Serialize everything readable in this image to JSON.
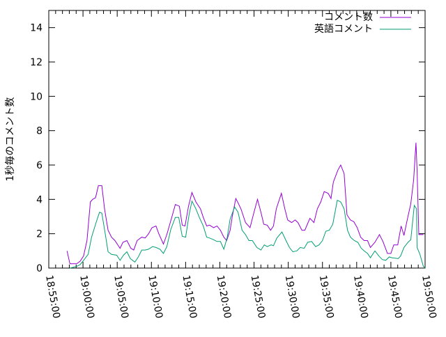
{
  "chart_data": {
    "type": "line",
    "title": "",
    "xlabel": "",
    "ylabel": "1秒毎のコメント数",
    "xlim": [
      "18:55:00",
      "19:50:00"
    ],
    "ylim": [
      0,
      15
    ],
    "x_ticks": [
      "18:55:00",
      "19:00:00",
      "19:05:00",
      "19:10:00",
      "19:15:00",
      "19:20:00",
      "19:25:00",
      "19:30:00",
      "19:35:00",
      "19:40:00",
      "19:45:00",
      "19:50:00"
    ],
    "y_ticks": [
      0,
      2,
      4,
      6,
      8,
      10,
      12,
      14
    ],
    "grid": false,
    "legend_position": "top-right",
    "series": [
      {
        "name": "コメント数",
        "color": "#9400d3",
        "points": [
          [
            "18:57:40",
            1.0
          ],
          [
            "18:58:05",
            0.25
          ],
          [
            "18:59:05",
            0.25
          ],
          [
            "18:59:35",
            0.4
          ],
          [
            "19:00:05",
            0.7
          ],
          [
            "19:00:35",
            1.6
          ],
          [
            "19:01:05",
            3.85
          ],
          [
            "19:01:25",
            4.0
          ],
          [
            "19:01:50",
            4.1
          ],
          [
            "19:02:15",
            4.8
          ],
          [
            "19:02:45",
            4.8
          ],
          [
            "19:03:10",
            3.4
          ],
          [
            "19:03:40",
            2.2
          ],
          [
            "19:04:10",
            1.8
          ],
          [
            "19:04:40",
            1.6
          ],
          [
            "19:05:25",
            1.15
          ],
          [
            "19:05:50",
            1.5
          ],
          [
            "19:06:25",
            1.6
          ],
          [
            "19:07:00",
            1.15
          ],
          [
            "19:07:25",
            1.05
          ],
          [
            "19:07:55",
            1.6
          ],
          [
            "19:08:35",
            1.8
          ],
          [
            "19:09:05",
            1.75
          ],
          [
            "19:09:35",
            2.0
          ],
          [
            "19:10:05",
            2.35
          ],
          [
            "19:10:40",
            2.45
          ],
          [
            "19:11:05",
            2.0
          ],
          [
            "19:11:45",
            1.4
          ],
          [
            "19:12:15",
            1.95
          ],
          [
            "19:13:05",
            3.1
          ],
          [
            "19:13:30",
            3.7
          ],
          [
            "19:14:05",
            3.6
          ],
          [
            "19:14:30",
            2.5
          ],
          [
            "19:14:55",
            2.45
          ],
          [
            "19:15:25",
            3.6
          ],
          [
            "19:15:55",
            4.4
          ],
          [
            "19:16:30",
            3.85
          ],
          [
            "19:17:10",
            3.45
          ],
          [
            "19:17:35",
            2.95
          ],
          [
            "19:18:05",
            2.45
          ],
          [
            "19:18:30",
            2.5
          ],
          [
            "19:19:05",
            2.35
          ],
          [
            "19:19:35",
            2.45
          ],
          [
            "19:20:05",
            2.2
          ],
          [
            "19:20:35",
            1.8
          ],
          [
            "19:21:00",
            1.6
          ],
          [
            "19:21:30",
            2.2
          ],
          [
            "19:21:50",
            3.05
          ],
          [
            "19:22:20",
            4.05
          ],
          [
            "19:22:40",
            3.8
          ],
          [
            "19:23:05",
            3.45
          ],
          [
            "19:23:45",
            2.65
          ],
          [
            "19:24:25",
            2.35
          ],
          [
            "19:25:00",
            3.25
          ],
          [
            "19:25:30",
            4.0
          ],
          [
            "19:26:00",
            3.25
          ],
          [
            "19:26:25",
            2.55
          ],
          [
            "19:26:55",
            2.5
          ],
          [
            "19:27:25",
            2.2
          ],
          [
            "19:27:50",
            2.45
          ],
          [
            "19:28:15",
            3.45
          ],
          [
            "19:29:00",
            4.35
          ],
          [
            "19:29:30",
            3.45
          ],
          [
            "19:29:55",
            2.8
          ],
          [
            "19:30:30",
            2.65
          ],
          [
            "19:31:00",
            2.8
          ],
          [
            "19:31:25",
            2.65
          ],
          [
            "19:32:00",
            2.2
          ],
          [
            "19:32:25",
            2.2
          ],
          [
            "19:33:10",
            2.9
          ],
          [
            "19:33:45",
            2.65
          ],
          [
            "19:34:15",
            3.45
          ],
          [
            "19:34:45",
            3.85
          ],
          [
            "19:35:15",
            4.45
          ],
          [
            "19:35:50",
            4.35
          ],
          [
            "19:36:15",
            4.05
          ],
          [
            "19:36:35",
            5.0
          ],
          [
            "19:37:15",
            5.7
          ],
          [
            "19:37:40",
            6.0
          ],
          [
            "19:38:10",
            5.5
          ],
          [
            "19:38:35",
            3.1
          ],
          [
            "19:39:05",
            2.8
          ],
          [
            "19:39:35",
            2.7
          ],
          [
            "19:40:05",
            2.35
          ],
          [
            "19:40:35",
            1.8
          ],
          [
            "19:41:05",
            1.6
          ],
          [
            "19:41:35",
            1.6
          ],
          [
            "19:42:00",
            1.2
          ],
          [
            "19:42:40",
            1.5
          ],
          [
            "19:43:20",
            1.95
          ],
          [
            "19:43:50",
            1.55
          ],
          [
            "19:44:30",
            0.85
          ],
          [
            "19:45:00",
            0.85
          ],
          [
            "19:45:25",
            1.35
          ],
          [
            "19:46:00",
            1.35
          ],
          [
            "19:46:30",
            2.45
          ],
          [
            "19:46:55",
            1.9
          ],
          [
            "19:47:25",
            2.85
          ],
          [
            "19:47:55",
            3.75
          ],
          [
            "19:48:20",
            5.15
          ],
          [
            "19:48:40",
            7.3
          ],
          [
            "19:48:50",
            5.7
          ],
          [
            "19:49:05",
            1.95
          ],
          [
            "19:49:45",
            1.95
          ]
        ]
      },
      {
        "name": "英語コメント",
        "color": "#009e73",
        "points": [
          [
            "18:58:05",
            0
          ],
          [
            "18:58:35",
            0.05
          ],
          [
            "18:59:05",
            0.1
          ],
          [
            "18:59:35",
            0.2
          ],
          [
            "19:00:05",
            0.45
          ],
          [
            "19:00:45",
            0.8
          ],
          [
            "19:01:15",
            1.8
          ],
          [
            "19:01:55",
            2.65
          ],
          [
            "19:02:25",
            3.25
          ],
          [
            "19:02:45",
            3.2
          ],
          [
            "19:03:10",
            2.2
          ],
          [
            "19:03:40",
            0.95
          ],
          [
            "19:04:10",
            0.8
          ],
          [
            "19:04:55",
            0.75
          ],
          [
            "19:05:25",
            0.45
          ],
          [
            "19:05:55",
            0.75
          ],
          [
            "19:06:25",
            0.95
          ],
          [
            "19:06:55",
            0.55
          ],
          [
            "19:07:35",
            0.35
          ],
          [
            "19:08:05",
            0.65
          ],
          [
            "19:08:35",
            1.05
          ],
          [
            "19:09:05",
            1.05
          ],
          [
            "19:09:35",
            1.1
          ],
          [
            "19:10:10",
            1.25
          ],
          [
            "19:10:40",
            1.2
          ],
          [
            "19:11:15",
            1.1
          ],
          [
            "19:11:45",
            0.85
          ],
          [
            "19:12:15",
            1.25
          ],
          [
            "19:12:50",
            2.25
          ],
          [
            "19:13:30",
            2.95
          ],
          [
            "19:14:00",
            2.95
          ],
          [
            "19:14:30",
            1.85
          ],
          [
            "19:15:00",
            1.8
          ],
          [
            "19:15:30",
            3.1
          ],
          [
            "19:15:55",
            3.9
          ],
          [
            "19:16:30",
            3.45
          ],
          [
            "19:17:00",
            2.95
          ],
          [
            "19:17:35",
            2.45
          ],
          [
            "19:18:05",
            1.8
          ],
          [
            "19:18:30",
            1.75
          ],
          [
            "19:19:05",
            1.65
          ],
          [
            "19:19:35",
            1.55
          ],
          [
            "19:20:05",
            1.55
          ],
          [
            "19:20:35",
            1.1
          ],
          [
            "19:21:05",
            1.8
          ],
          [
            "19:21:30",
            2.85
          ],
          [
            "19:22:10",
            3.55
          ],
          [
            "19:22:40",
            3.25
          ],
          [
            "19:23:15",
            2.2
          ],
          [
            "19:23:45",
            1.95
          ],
          [
            "19:24:15",
            1.6
          ],
          [
            "19:24:45",
            1.6
          ],
          [
            "19:25:25",
            1.2
          ],
          [
            "19:26:00",
            1.05
          ],
          [
            "19:26:30",
            1.35
          ],
          [
            "19:26:55",
            1.25
          ],
          [
            "19:27:30",
            1.35
          ],
          [
            "19:27:50",
            1.3
          ],
          [
            "19:28:20",
            1.75
          ],
          [
            "19:29:05",
            2.1
          ],
          [
            "19:29:40",
            1.6
          ],
          [
            "19:30:10",
            1.2
          ],
          [
            "19:30:40",
            0.95
          ],
          [
            "19:31:15",
            1.0
          ],
          [
            "19:31:45",
            1.2
          ],
          [
            "19:32:20",
            1.15
          ],
          [
            "19:32:50",
            1.5
          ],
          [
            "19:33:25",
            1.55
          ],
          [
            "19:34:00",
            1.25
          ],
          [
            "19:34:30",
            1.35
          ],
          [
            "19:35:00",
            1.6
          ],
          [
            "19:35:30",
            2.15
          ],
          [
            "19:36:00",
            2.2
          ],
          [
            "19:36:30",
            2.55
          ],
          [
            "19:37:10",
            3.95
          ],
          [
            "19:37:40",
            3.85
          ],
          [
            "19:38:10",
            3.45
          ],
          [
            "19:38:40",
            2.2
          ],
          [
            "19:39:05",
            1.8
          ],
          [
            "19:39:40",
            1.6
          ],
          [
            "19:40:10",
            1.5
          ],
          [
            "19:40:40",
            1.15
          ],
          [
            "19:41:05",
            1.0
          ],
          [
            "19:41:35",
            0.85
          ],
          [
            "19:42:00",
            0.6
          ],
          [
            "19:42:40",
            1.0
          ],
          [
            "19:43:15",
            0.7
          ],
          [
            "19:43:45",
            0.5
          ],
          [
            "19:44:15",
            0.45
          ],
          [
            "19:44:45",
            0.65
          ],
          [
            "19:45:10",
            0.6
          ],
          [
            "19:46:05",
            0.55
          ],
          [
            "19:46:25",
            0.7
          ],
          [
            "19:46:55",
            1.2
          ],
          [
            "19:47:30",
            1.5
          ],
          [
            "19:47:55",
            1.65
          ],
          [
            "19:48:25",
            3.65
          ],
          [
            "19:48:45",
            3.45
          ],
          [
            "19:48:50",
            1.2
          ],
          [
            "19:49:15",
            0.8
          ],
          [
            "19:49:45",
            0.1
          ],
          [
            "19:50:00",
            0
          ]
        ]
      }
    ]
  }
}
